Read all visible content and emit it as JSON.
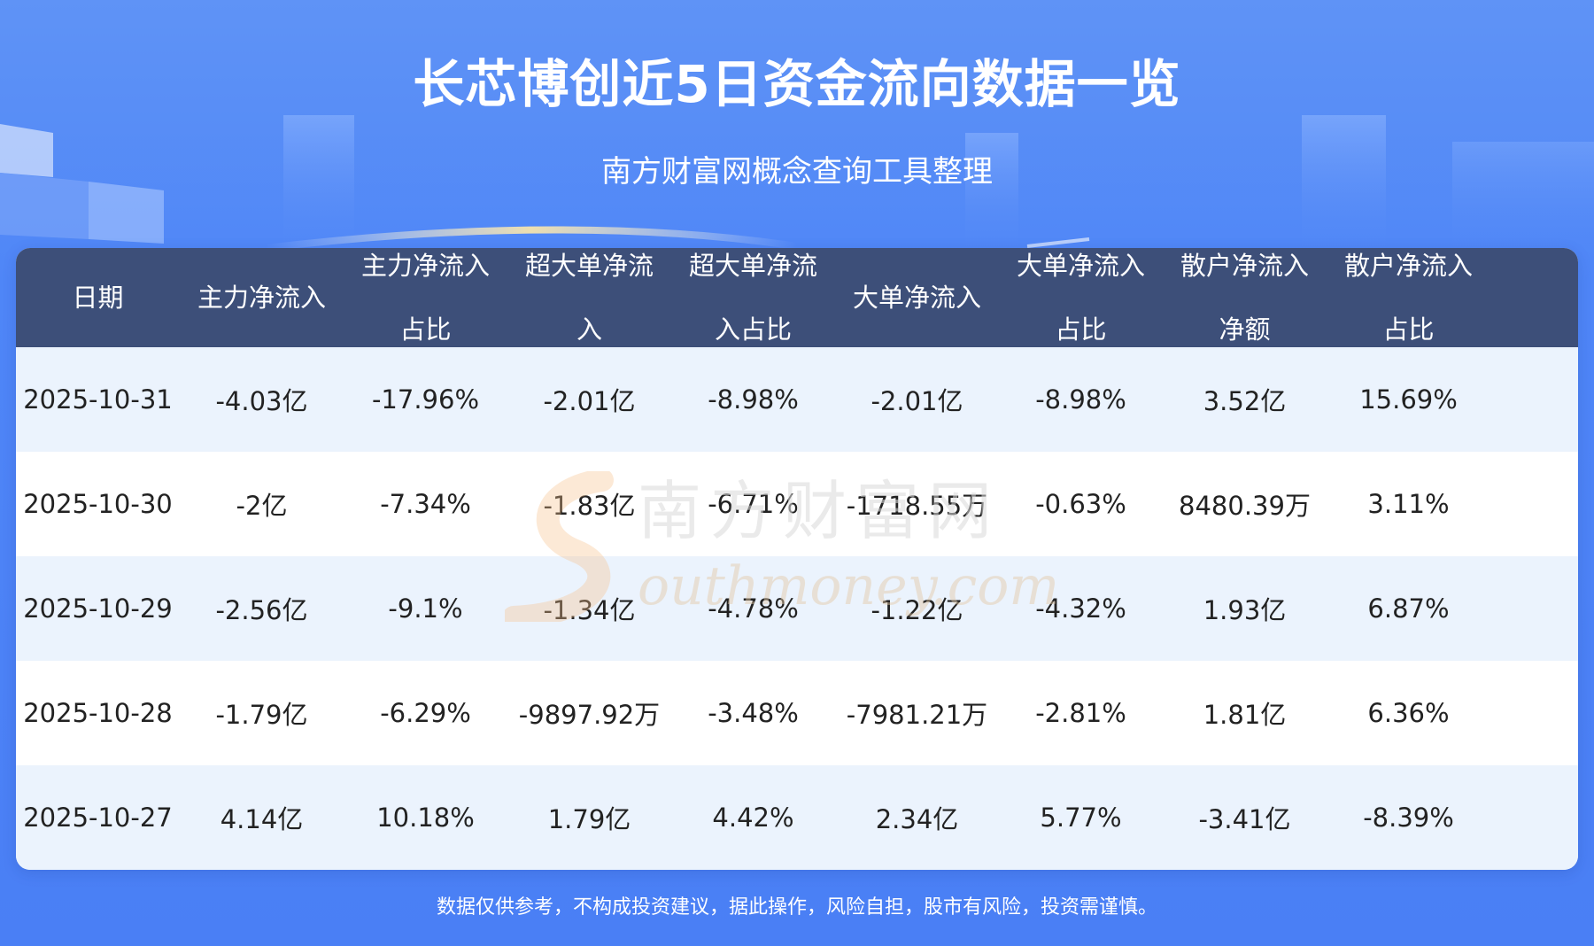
{
  "header": {
    "title": "长芯博创近5日资金流向数据一览",
    "subtitle": "南方财富网概念查询工具整理"
  },
  "watermark": {
    "cn": "南方财富网",
    "en": "outhmoney.com"
  },
  "footer": {
    "disclaimer": "数据仅供参考，不构成投资建议，据此操作，风险自担，股市有风险，投资需谨慎。"
  },
  "colors": {
    "background": "#4f86f7",
    "header_row": "#3d4f79",
    "row_alt": "#ebf3fd",
    "row": "#ffffff"
  },
  "chart_data": {
    "type": "table",
    "columns": [
      [
        "日期"
      ],
      [
        "主力净流入"
      ],
      [
        "主力净流入",
        "占比"
      ],
      [
        "超大单净流",
        "入"
      ],
      [
        "超大单净流",
        "入占比"
      ],
      [
        "大单净流入"
      ],
      [
        "大单净流入",
        "占比"
      ],
      [
        "散户净流入",
        "净额"
      ],
      [
        "散户净流入",
        "占比"
      ]
    ],
    "rows": [
      [
        "2025-10-31",
        "-4.03亿",
        "-17.96%",
        "-2.01亿",
        "-8.98%",
        "-2.01亿",
        "-8.98%",
        "3.52亿",
        "15.69%"
      ],
      [
        "2025-10-30",
        "-2亿",
        "-7.34%",
        "-1.83亿",
        "-6.71%",
        "-1718.55万",
        "-0.63%",
        "8480.39万",
        "3.11%"
      ],
      [
        "2025-10-29",
        "-2.56亿",
        "-9.1%",
        "-1.34亿",
        "-4.78%",
        "-1.22亿",
        "-4.32%",
        "1.93亿",
        "6.87%"
      ],
      [
        "2025-10-28",
        "-1.79亿",
        "-6.29%",
        "-9897.92万",
        "-3.48%",
        "-7981.21万",
        "-2.81%",
        "1.81亿",
        "6.36%"
      ],
      [
        "2025-10-27",
        "4.14亿",
        "10.18%",
        "1.79亿",
        "4.42%",
        "2.34亿",
        "5.77%",
        "-3.41亿",
        "-8.39%"
      ]
    ]
  }
}
